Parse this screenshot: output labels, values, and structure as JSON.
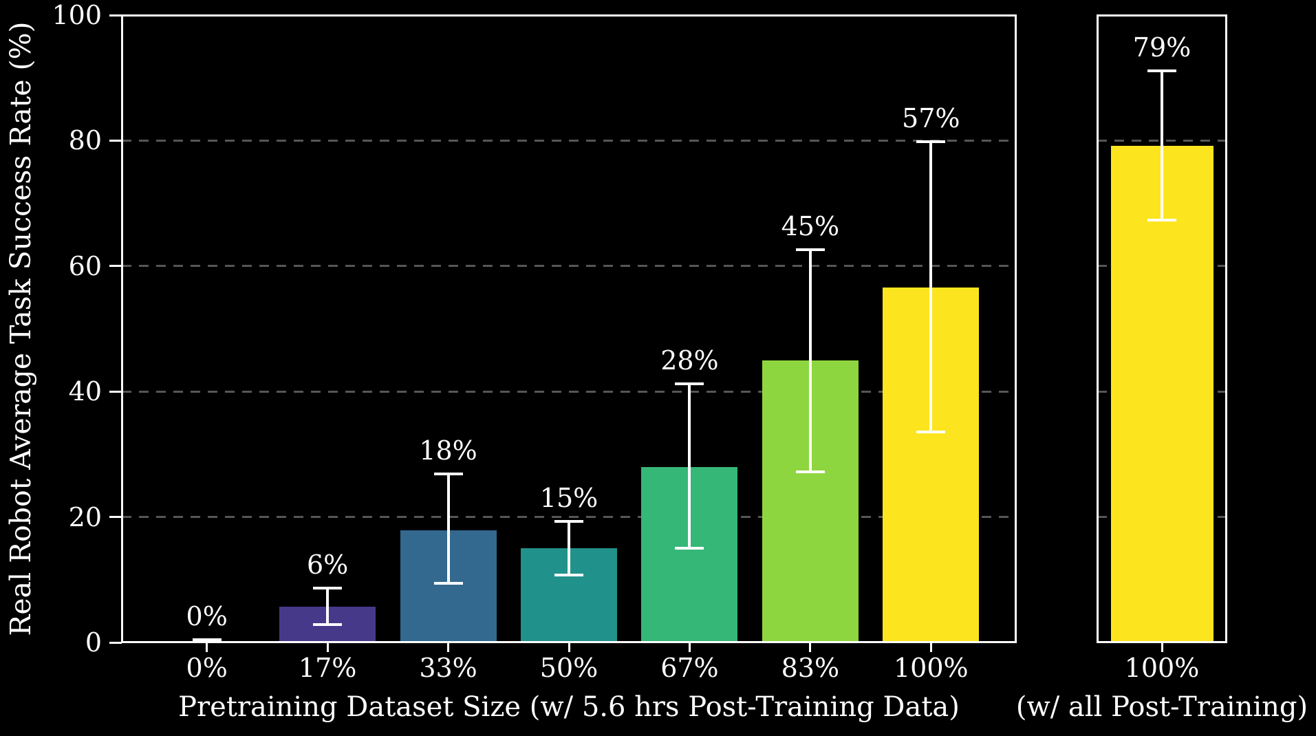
{
  "chart_data": {
    "type": "bar",
    "ylabel": "Real Robot Average Task Success Rate (%)",
    "ylim": [
      0,
      100
    ],
    "yticks": [
      0,
      20,
      40,
      60,
      80,
      100
    ],
    "ytick_labels": [
      "0",
      "20",
      "40",
      "60",
      "80",
      "100"
    ],
    "grid_y": [
      20,
      40,
      60,
      80
    ],
    "grid_style": "dashed",
    "background_color": "#000000",
    "text_color": "#ffffff",
    "grid_color": "#565656",
    "error_bar_color": "#ffffff",
    "legend": "none",
    "panels": [
      {
        "name": "main",
        "xlabel": "Pretraining Dataset Size (w/ 5.6 hrs Post-Training Data)",
        "categories": [
          "0%",
          "17%",
          "33%",
          "50%",
          "67%",
          "83%",
          "100%"
        ],
        "values": [
          0,
          5.7,
          17.9,
          15.0,
          28.0,
          45.0,
          56.6
        ],
        "value_labels": [
          "0%",
          "6%",
          "18%",
          "15%",
          "28%",
          "45%",
          "57%"
        ],
        "error_low": [
          null,
          2.8,
          9.4,
          10.8,
          15.0,
          27.2,
          33.5
        ],
        "error_high": [
          0.4,
          8.7,
          26.9,
          19.3,
          41.2,
          62.6,
          79.8
        ],
        "bar_colors": [
          "#440154",
          "#46398a",
          "#33698f",
          "#21928b",
          "#35b778",
          "#8ed63f",
          "#fce51e"
        ]
      },
      {
        "name": "side",
        "xlabel": "(w/ all Post-Training)",
        "categories": [
          "100%"
        ],
        "values": [
          79.2
        ],
        "value_labels": [
          "79%"
        ],
        "error_low": [
          67.3
        ],
        "error_high": [
          91.1
        ],
        "bar_colors": [
          "#fce51e"
        ]
      }
    ]
  }
}
